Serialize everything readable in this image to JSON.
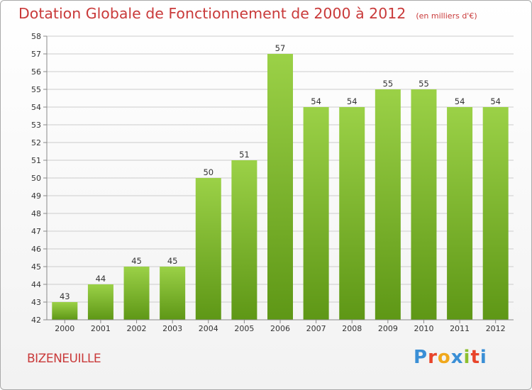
{
  "header": {
    "title": "Dotation Globale de Fonctionnement de 2000 à 2012",
    "unit": "(en milliers d'€)"
  },
  "footer": {
    "commune": "BIZENEUILLE",
    "logo": {
      "letters": [
        "P",
        "r",
        "o",
        "x",
        "i",
        "t",
        "i"
      ],
      "colors": [
        "#3a8fd6",
        "#e8442a",
        "#f0a81c",
        "#3a8fd6",
        "#8dbf2e",
        "#e8442a",
        "#3a8fd6"
      ]
    }
  },
  "colors": {
    "title": "#c93a3a",
    "bar_top": "#9bd147",
    "bar_bottom": "#5e9716",
    "grid": "#cccccc"
  },
  "chart_data": {
    "type": "bar",
    "categories": [
      "2000",
      "2001",
      "2002",
      "2003",
      "2004",
      "2005",
      "2006",
      "2007",
      "2008",
      "2009",
      "2010",
      "2011",
      "2012"
    ],
    "values": [
      43,
      44,
      45,
      45,
      50,
      51,
      57,
      54,
      54,
      55,
      55,
      54,
      54
    ],
    "ylim": [
      42,
      58
    ],
    "yticks": [
      42,
      43,
      44,
      45,
      46,
      47,
      48,
      49,
      50,
      51,
      52,
      53,
      54,
      55,
      56,
      57,
      58
    ],
    "grid": true,
    "data_labels": true
  }
}
